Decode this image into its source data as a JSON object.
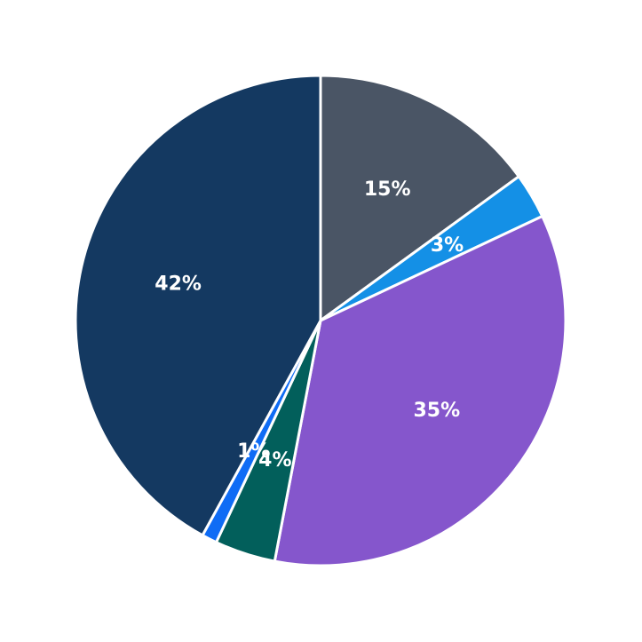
{
  "chart_data": {
    "type": "pie",
    "title": "",
    "start_angle": "top (12 o'clock)",
    "direction": "clockwise",
    "slice_border_color": "#ffffff",
    "slices": [
      {
        "label": "15%",
        "value": 15,
        "color": "#4a5565"
      },
      {
        "label": "3%",
        "value": 3,
        "color": "#1490e6"
      },
      {
        "label": "35%",
        "value": 35,
        "color": "#8556cc"
      },
      {
        "label": "4%",
        "value": 4,
        "color": "#025f5b"
      },
      {
        "label": "1%",
        "value": 1,
        "color": "#0f6cf5"
      },
      {
        "label": "42%",
        "value": 42,
        "color": "#143961"
      }
    ],
    "legend": null
  }
}
